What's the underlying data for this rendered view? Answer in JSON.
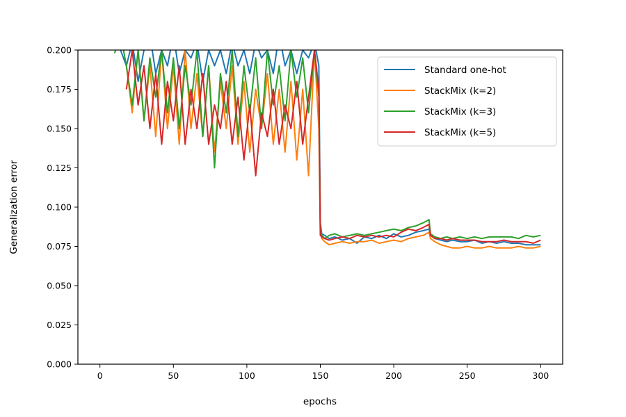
{
  "chart_data": {
    "type": "line",
    "xlabel": "epochs",
    "ylabel": "Generalization error",
    "xlim": [
      -15,
      315
    ],
    "ylim": [
      0,
      0.2
    ],
    "x_ticks": [
      0,
      50,
      100,
      150,
      200,
      250,
      300
    ],
    "y_ticks": [
      0,
      0.025,
      0.05,
      0.075,
      0.1,
      0.125,
      0.15,
      0.175,
      0.2
    ],
    "x_tick_labels": [
      "0",
      "50",
      "100",
      "150",
      "200",
      "250",
      "300"
    ],
    "y_tick_labels": [
      "0.000",
      "0.025",
      "0.050",
      "0.075",
      "0.100",
      "0.125",
      "0.150",
      "0.175",
      "0.200"
    ],
    "grid": false,
    "legend_position": "top-right",
    "series": [
      {
        "name": "Standard one-hot",
        "color": "#1f77b4",
        "x": [
          10,
          14,
          18,
          22,
          26,
          30,
          34,
          38,
          42,
          46,
          50,
          54,
          58,
          62,
          66,
          70,
          74,
          78,
          82,
          86,
          90,
          94,
          98,
          102,
          106,
          110,
          114,
          118,
          122,
          126,
          130,
          134,
          138,
          142,
          146,
          149,
          150,
          151,
          153,
          156,
          160,
          165,
          170,
          175,
          180,
          185,
          190,
          195,
          200,
          205,
          210,
          215,
          220,
          224,
          225,
          228,
          232,
          236,
          240,
          245,
          250,
          255,
          260,
          265,
          270,
          275,
          280,
          285,
          290,
          295,
          300
        ],
        "y": [
          0.21,
          0.2,
          0.19,
          0.205,
          0.18,
          0.2,
          0.21,
          0.185,
          0.2,
          0.19,
          0.21,
          0.185,
          0.2,
          0.195,
          0.205,
          0.18,
          0.2,
          0.19,
          0.2,
          0.185,
          0.205,
          0.19,
          0.2,
          0.185,
          0.205,
          0.195,
          0.2,
          0.185,
          0.21,
          0.19,
          0.2,
          0.185,
          0.2,
          0.195,
          0.205,
          0.19,
          0.09,
          0.083,
          0.082,
          0.08,
          0.081,
          0.079,
          0.08,
          0.077,
          0.081,
          0.08,
          0.082,
          0.08,
          0.083,
          0.081,
          0.082,
          0.084,
          0.085,
          0.086,
          0.082,
          0.08,
          0.079,
          0.078,
          0.079,
          0.078,
          0.078,
          0.079,
          0.077,
          0.078,
          0.077,
          0.078,
          0.077,
          0.077,
          0.076,
          0.076,
          0.076
        ]
      },
      {
        "name": "StackMix (k=2)",
        "color": "#ff7f0e",
        "x": [
          18,
          22,
          26,
          30,
          34,
          38,
          42,
          46,
          50,
          54,
          58,
          62,
          66,
          70,
          74,
          78,
          82,
          86,
          90,
          94,
          98,
          102,
          106,
          110,
          114,
          118,
          122,
          126,
          130,
          134,
          138,
          142,
          146,
          149,
          150,
          151,
          153,
          156,
          160,
          165,
          170,
          175,
          180,
          185,
          190,
          195,
          200,
          205,
          210,
          215,
          220,
          224,
          225,
          228,
          232,
          236,
          240,
          245,
          250,
          255,
          260,
          265,
          270,
          275,
          280,
          285,
          290,
          295,
          300
        ],
        "y": [
          0.19,
          0.16,
          0.2,
          0.155,
          0.19,
          0.145,
          0.2,
          0.15,
          0.19,
          0.14,
          0.2,
          0.15,
          0.185,
          0.145,
          0.19,
          0.135,
          0.18,
          0.15,
          0.19,
          0.14,
          0.18,
          0.135,
          0.175,
          0.15,
          0.185,
          0.14,
          0.175,
          0.135,
          0.18,
          0.13,
          0.175,
          0.12,
          0.2,
          0.15,
          0.085,
          0.08,
          0.078,
          0.076,
          0.077,
          0.078,
          0.077,
          0.078,
          0.078,
          0.079,
          0.077,
          0.078,
          0.079,
          0.078,
          0.08,
          0.081,
          0.082,
          0.084,
          0.08,
          0.078,
          0.076,
          0.075,
          0.074,
          0.074,
          0.075,
          0.074,
          0.074,
          0.075,
          0.074,
          0.074,
          0.074,
          0.075,
          0.074,
          0.074,
          0.075
        ]
      },
      {
        "name": "StackMix (k=3)",
        "color": "#2ca02c",
        "x": [
          10,
          14,
          18,
          22,
          26,
          30,
          34,
          38,
          42,
          46,
          50,
          54,
          58,
          62,
          66,
          70,
          74,
          78,
          82,
          86,
          90,
          94,
          98,
          102,
          106,
          110,
          114,
          118,
          122,
          126,
          130,
          134,
          138,
          142,
          146,
          149,
          150,
          151,
          153,
          156,
          160,
          165,
          170,
          175,
          180,
          185,
          190,
          195,
          200,
          205,
          210,
          215,
          220,
          224,
          225,
          228,
          232,
          236,
          240,
          245,
          250,
          255,
          260,
          265,
          270,
          275,
          280,
          285,
          290,
          295,
          300
        ],
        "y": [
          0.198,
          0.21,
          0.19,
          0.165,
          0.2,
          0.155,
          0.195,
          0.17,
          0.2,
          0.16,
          0.195,
          0.15,
          0.19,
          0.165,
          0.2,
          0.145,
          0.19,
          0.125,
          0.185,
          0.16,
          0.2,
          0.145,
          0.19,
          0.16,
          0.195,
          0.15,
          0.2,
          0.165,
          0.19,
          0.155,
          0.2,
          0.17,
          0.195,
          0.16,
          0.2,
          0.17,
          0.088,
          0.082,
          0.08,
          0.082,
          0.083,
          0.081,
          0.082,
          0.083,
          0.082,
          0.083,
          0.084,
          0.085,
          0.086,
          0.085,
          0.087,
          0.088,
          0.09,
          0.092,
          0.083,
          0.081,
          0.08,
          0.081,
          0.08,
          0.081,
          0.08,
          0.081,
          0.08,
          0.081,
          0.081,
          0.081,
          0.081,
          0.08,
          0.082,
          0.081,
          0.082
        ]
      },
      {
        "name": "StackMix (k=5)",
        "color": "#d62728",
        "x": [
          18,
          22,
          26,
          30,
          34,
          38,
          42,
          46,
          50,
          54,
          58,
          62,
          66,
          70,
          74,
          78,
          82,
          86,
          90,
          94,
          98,
          102,
          106,
          110,
          114,
          118,
          122,
          126,
          130,
          134,
          138,
          142,
          146,
          149,
          150,
          151,
          153,
          156,
          160,
          165,
          170,
          175,
          180,
          185,
          190,
          195,
          200,
          205,
          210,
          215,
          220,
          224,
          225,
          228,
          232,
          236,
          240,
          245,
          250,
          255,
          260,
          265,
          270,
          275,
          280,
          285,
          290,
          295,
          300
        ],
        "y": [
          0.175,
          0.2,
          0.165,
          0.19,
          0.15,
          0.185,
          0.14,
          0.18,
          0.155,
          0.19,
          0.14,
          0.175,
          0.15,
          0.185,
          0.14,
          0.165,
          0.15,
          0.18,
          0.14,
          0.17,
          0.13,
          0.165,
          0.12,
          0.16,
          0.145,
          0.175,
          0.14,
          0.165,
          0.15,
          0.18,
          0.14,
          0.17,
          0.2,
          0.175,
          0.082,
          0.081,
          0.08,
          0.079,
          0.08,
          0.081,
          0.08,
          0.082,
          0.081,
          0.082,
          0.081,
          0.082,
          0.081,
          0.084,
          0.086,
          0.085,
          0.087,
          0.089,
          0.082,
          0.08,
          0.08,
          0.079,
          0.08,
          0.079,
          0.079,
          0.079,
          0.078,
          0.078,
          0.078,
          0.079,
          0.078,
          0.078,
          0.078,
          0.077,
          0.079
        ]
      }
    ]
  }
}
